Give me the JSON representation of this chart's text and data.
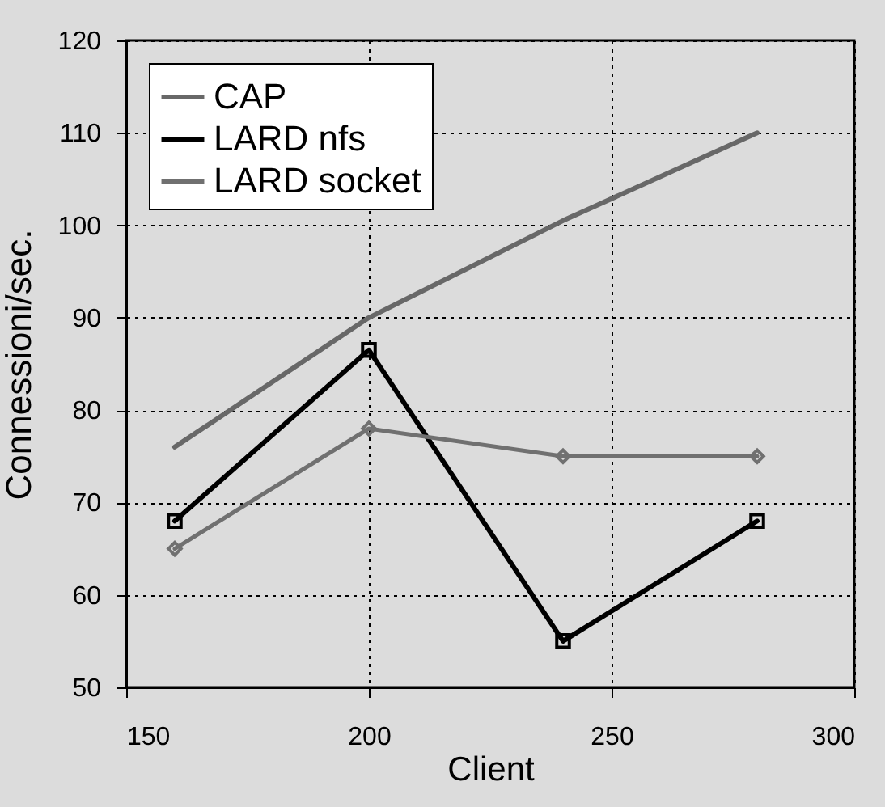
{
  "chart_data": {
    "type": "line",
    "xlabel": "Client",
    "ylabel": "Connessioni/sec.",
    "x": [
      160,
      200,
      240,
      280
    ],
    "series": [
      {
        "name": "CAP",
        "color": "#686868",
        "marker": "none",
        "values": [
          76,
          90,
          100.5,
          110
        ]
      },
      {
        "name": "LARD nfs",
        "color": "#000000",
        "marker": "square",
        "values": [
          68,
          86.5,
          55,
          68
        ]
      },
      {
        "name": "LARD socket",
        "color": "#707070",
        "marker": "diamond",
        "values": [
          65,
          78,
          75,
          75
        ]
      }
    ],
    "xlim": [
      150,
      300
    ],
    "xticks": [
      150,
      200,
      250,
      300
    ],
    "ylim": [
      50,
      120
    ],
    "yticks": [
      50,
      60,
      70,
      80,
      90,
      100,
      110,
      120
    ],
    "grid": true,
    "legend": "top left",
    "line_style": "solid"
  }
}
